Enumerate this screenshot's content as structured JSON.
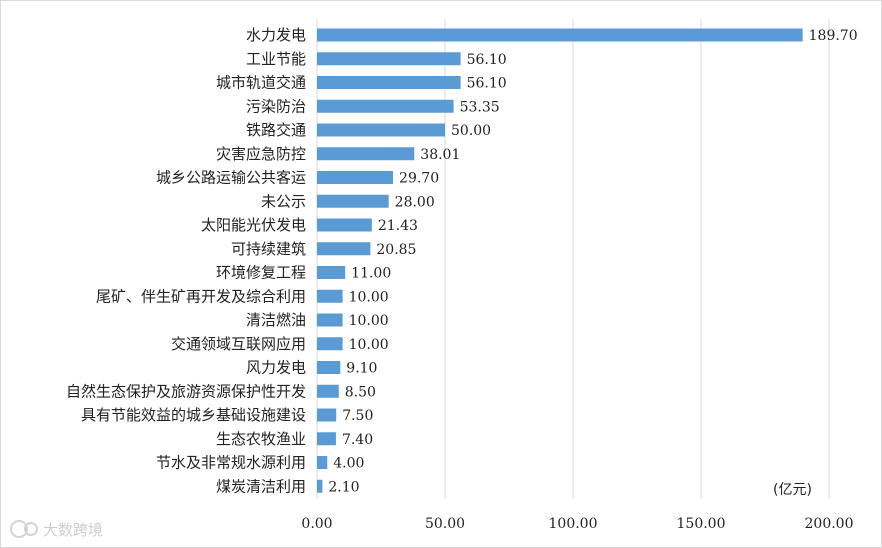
{
  "chart_data": {
    "type": "bar",
    "orientation": "horizontal",
    "categories": [
      "水力发电",
      "工业节能",
      "城市轨道交通",
      "污染防治",
      "铁路交通",
      "灾害应急防控",
      "城乡公路运输公共客运",
      "未公示",
      "太阳能光伏发电",
      "可持续建筑",
      "环境修复工程",
      "尾矿、伴生矿再开发及综合利用",
      "清洁燃油",
      "交通领域互联网应用",
      "风力发电",
      "自然生态保护及旅游资源保护性开发",
      "具有节能效益的城乡基础设施建设",
      "生态农牧渔业",
      "节水及非常规水源利用",
      "煤炭清洁利用"
    ],
    "values": [
      189.7,
      56.1,
      56.1,
      53.35,
      50.0,
      38.01,
      29.7,
      28.0,
      21.43,
      20.85,
      11.0,
      10.0,
      10.0,
      10.0,
      9.1,
      8.5,
      7.5,
      7.4,
      4.0,
      2.1
    ],
    "value_labels": [
      "189.70",
      "56.10",
      "56.10",
      "53.35",
      "50.00",
      "38.01",
      "29.70",
      "28.00",
      "21.43",
      "20.85",
      "11.00",
      "10.00",
      "10.00",
      "10.00",
      "9.10",
      "8.50",
      "7.50",
      "7.40",
      "4.00",
      "2.10"
    ],
    "xlim": [
      0,
      200
    ],
    "xticks": [
      0,
      50,
      100,
      150,
      200
    ],
    "xtick_labels": [
      "0.00",
      "50.00",
      "100.00",
      "150.00",
      "200.00"
    ],
    "unit_label": "(亿元)",
    "grid": "vertical",
    "legend": "none",
    "bar_color": "#5b9bd5",
    "grid_color": "#d9d9d9"
  },
  "watermark": {
    "text": "大数跨境"
  }
}
